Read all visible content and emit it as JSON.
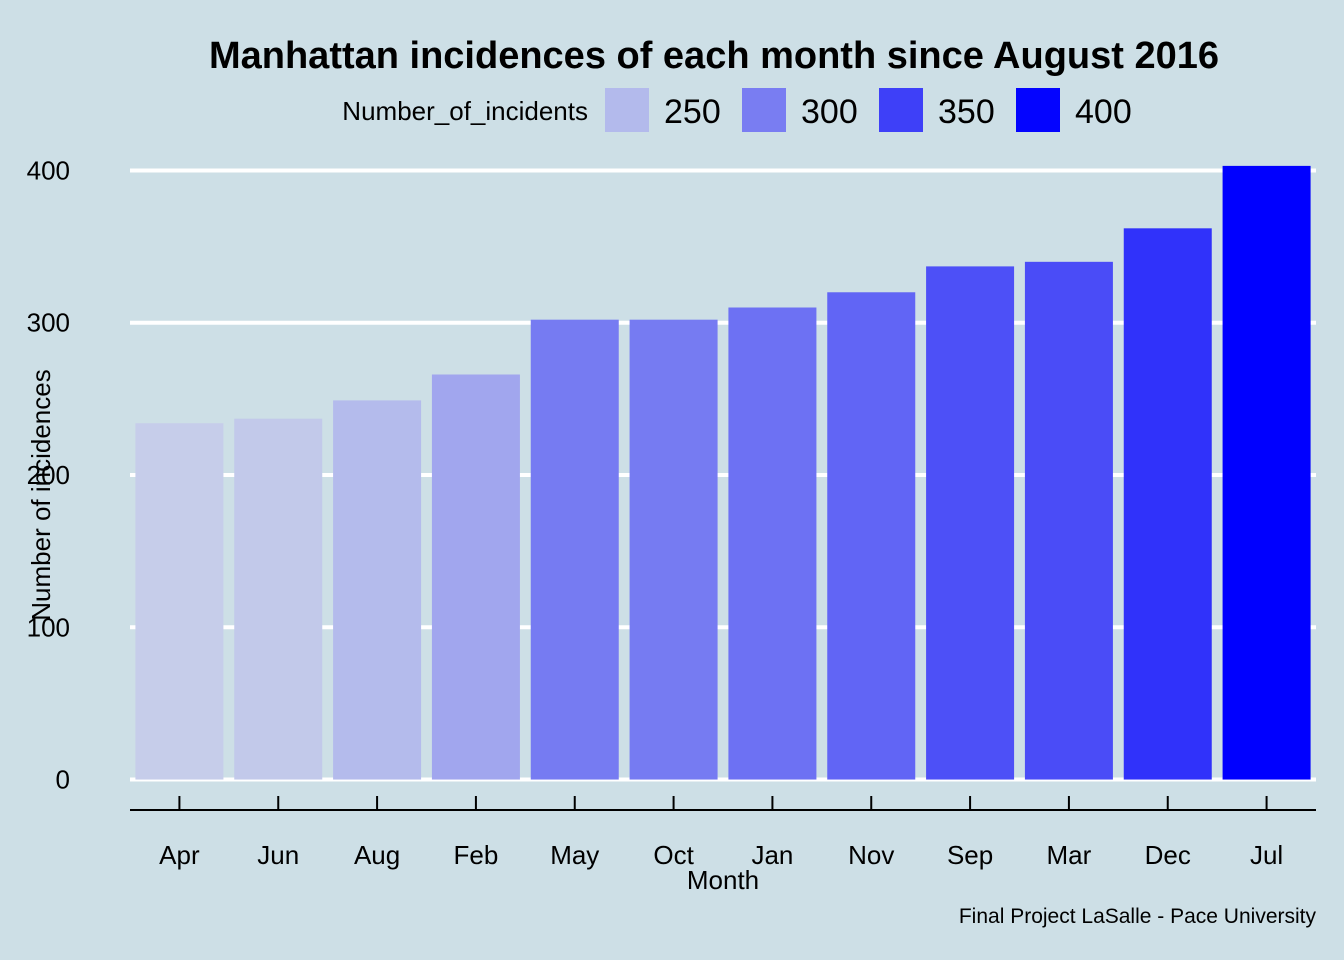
{
  "chart_data": {
    "type": "bar",
    "title": "Manhattan incidences of each month since August 2016",
    "xlabel": "Month",
    "ylabel": "Number of incidences",
    "caption": "Final Project LaSalle - Pace University",
    "categories": [
      "Apr",
      "Jun",
      "Aug",
      "Feb",
      "May",
      "Oct",
      "Jan",
      "Nov",
      "Sep",
      "Mar",
      "Dec",
      "Jul"
    ],
    "values": [
      234,
      237,
      249,
      266,
      302,
      302,
      310,
      320,
      337,
      340,
      362,
      403
    ],
    "ylim": [
      -20,
      420
    ],
    "yticks": [
      0,
      100,
      200,
      300,
      400
    ],
    "grid": "horizontal",
    "legend": {
      "title": "Number_of_incidents",
      "position": "top",
      "keys": [
        {
          "label": "250",
          "value": 250
        },
        {
          "label": "300",
          "value": 300
        },
        {
          "label": "350",
          "value": 350
        },
        {
          "label": "400",
          "value": 400
        }
      ]
    },
    "colors": {
      "background": "#cddfe6",
      "grid": "#ffffff",
      "low": "#c6cdea",
      "high": "#0000ff",
      "text": "#000000"
    }
  }
}
